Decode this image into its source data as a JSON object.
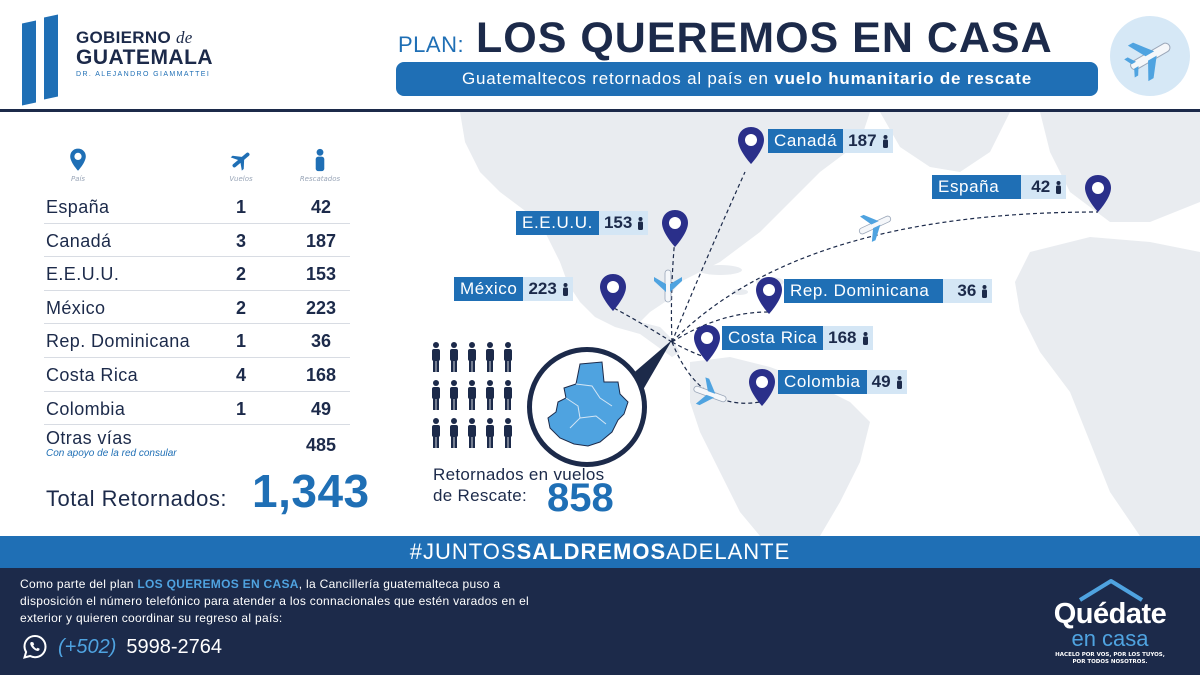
{
  "header": {
    "logo": {
      "line1": "GOBIERNO",
      "line1_italic": "de",
      "line2": "GUATEMALA",
      "line3": "DR. ALEJANDRO GIAMMATTEI"
    },
    "plan_prefix": "PLAN:",
    "plan_title": "LOS QUEREMOS EN CASA",
    "subtitle_normal": "Guatemaltecos retornados al país en",
    "subtitle_bold": "vuelo humanitario de rescate"
  },
  "table": {
    "headers": {
      "country": "País",
      "flights": "Vuelos",
      "rescued": "Rescatados"
    },
    "rows": [
      {
        "country": "España",
        "flights": "1",
        "rescued": "42"
      },
      {
        "country": "Canadá",
        "flights": "3",
        "rescued": "187"
      },
      {
        "country": "E.E.U.U.",
        "flights": "2",
        "rescued": "153"
      },
      {
        "country": "México",
        "flights": "2",
        "rescued": "223"
      },
      {
        "country": "Rep. Dominicana",
        "flights": "1",
        "rescued": "36"
      },
      {
        "country": "Costa Rica",
        "flights": "4",
        "rescued": "168"
      },
      {
        "country": "Colombia",
        "flights": "1",
        "rescued": "49"
      }
    ],
    "other": {
      "country": "Otras vías",
      "note": "Con apoyo de la red consular",
      "rescued": "485"
    },
    "total_label": "Total Retornados:",
    "total_value": "1,343"
  },
  "rescue": {
    "label_line1": "Retornados en vuelos",
    "label_line2": "de Rescate:",
    "value": "858"
  },
  "map_labels": {
    "canada": {
      "name": "Canadá",
      "value": "187"
    },
    "espana": {
      "name": "España",
      "value": "42"
    },
    "eeuu": {
      "name": "E.E.U.U.",
      "value": "153"
    },
    "mexico": {
      "name": "México",
      "value": "223"
    },
    "repdom": {
      "name": "Rep. Dominicana",
      "value": "36"
    },
    "costarica": {
      "name": "Costa Rica",
      "value": "168"
    },
    "colombia": {
      "name": "Colombia",
      "value": "49"
    }
  },
  "hashtag": {
    "part1": "#JUNTOS",
    "part2": "SALDREMOS",
    "part3": "ADELANTE"
  },
  "footer": {
    "text_part1": "Como parte del plan",
    "text_highlight": "LOS QUEREMOS EN CASA",
    "text_part2": ", la Cancillería guatemalteca puso a disposición el número telefónico para atender a los connacionales que estén varados en el exterior y quieren coordinar su regreso al país:",
    "phone_code": "(+502)",
    "phone_number": "5998-2764",
    "quedate_main": "Quédate",
    "quedate_sub": "en casa",
    "quedate_small_1": "HACELO POR VOS, POR LOS TUYOS,",
    "quedate_small_2": "POR TODOS NOSOTROS."
  },
  "colors": {
    "navy": "#1c2a4a",
    "blue": "#1f6fb5",
    "light_blue": "#d4e6f5",
    "land": "#e9ecf0"
  },
  "icons": [
    "location-pin-icon",
    "airplane-icon",
    "person-icon",
    "whatsapp-icon",
    "house-icon"
  ]
}
